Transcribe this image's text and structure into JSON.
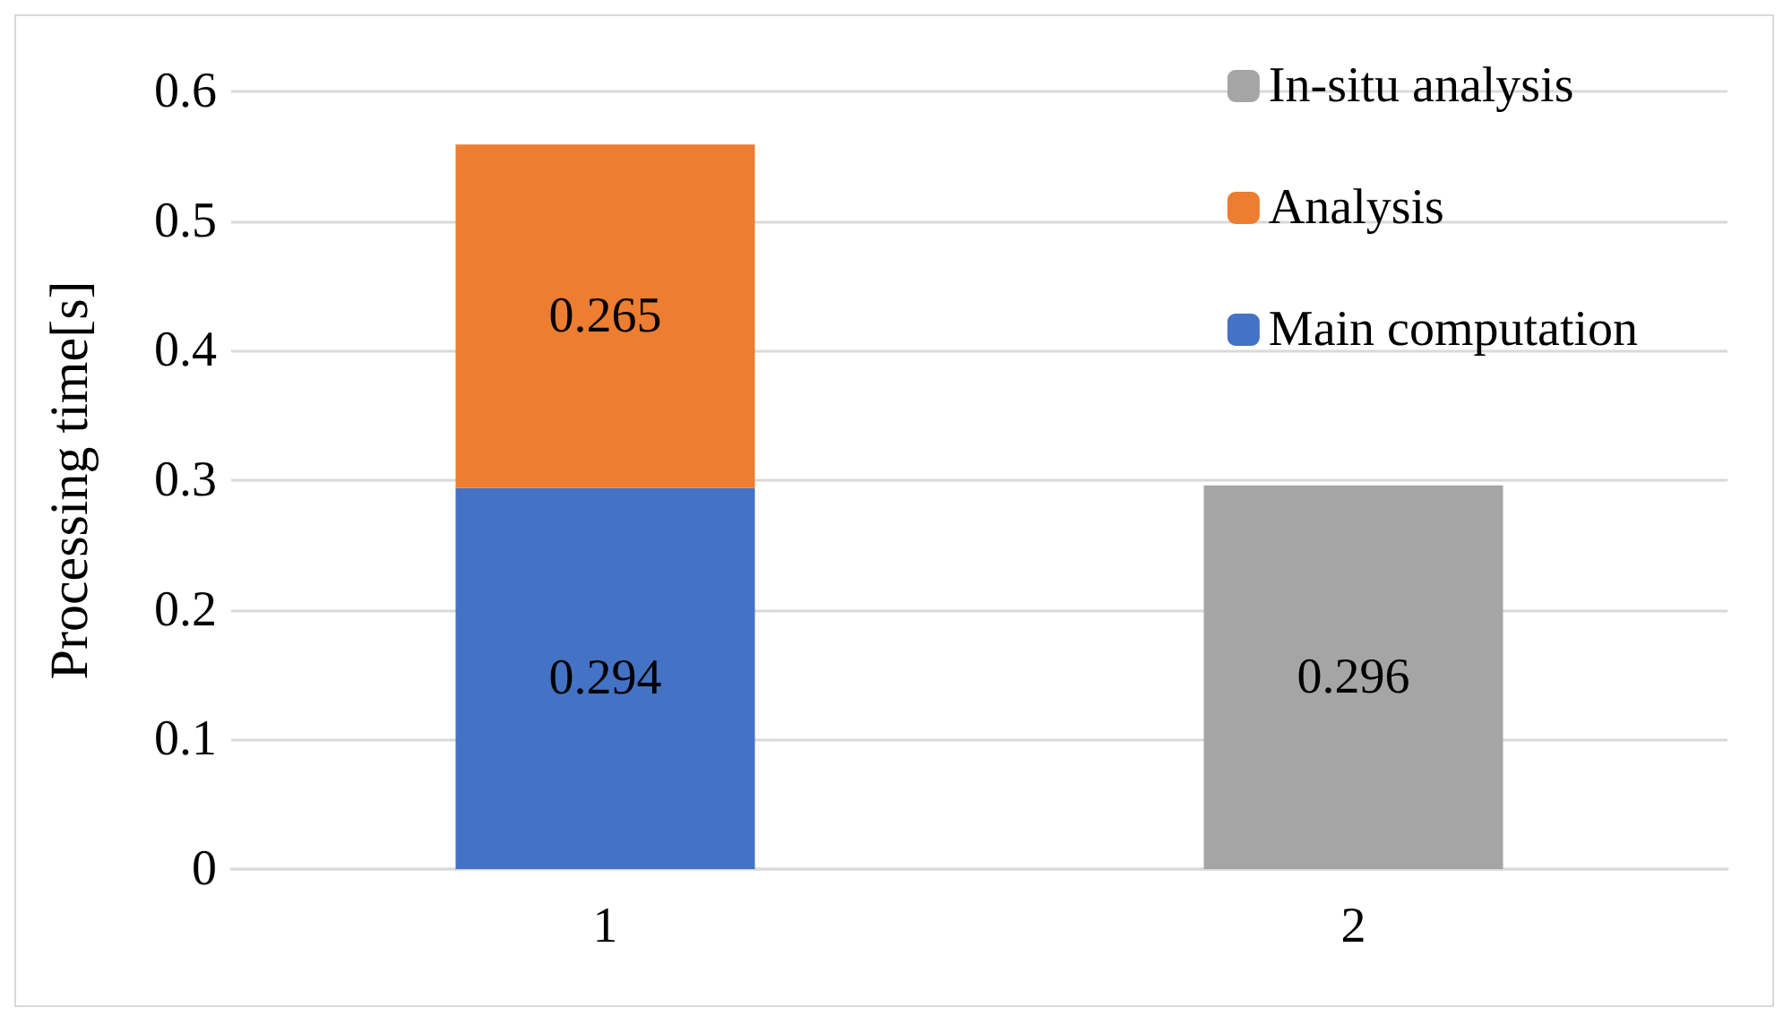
{
  "chart_data": {
    "type": "bar",
    "stacked": true,
    "ylabel": "Processing time[s]",
    "categories": [
      "1",
      "2"
    ],
    "series": [
      {
        "name": "Main computation",
        "color": "#4472c4",
        "values": [
          0.294,
          null
        ]
      },
      {
        "name": "Analysis",
        "color": "#ed7d31",
        "values": [
          0.265,
          null
        ]
      },
      {
        "name": "In-situ analysis",
        "color": "#a5a5a5",
        "values": [
          null,
          0.296
        ]
      }
    ],
    "ylim": [
      0,
      0.6
    ],
    "yticks": [
      0,
      0.1,
      0.2,
      0.3,
      0.4,
      0.5,
      0.6
    ],
    "grid": "y",
    "legend": "top right",
    "data_labels": true
  }
}
